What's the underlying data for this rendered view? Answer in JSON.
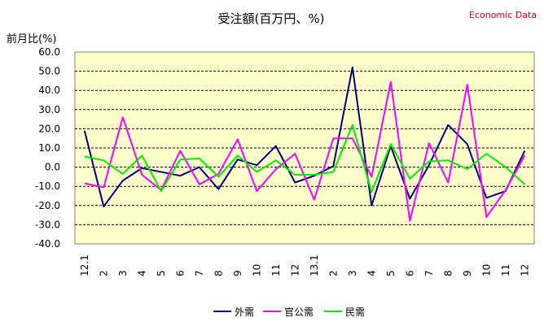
{
  "brand_text": "Economic Data",
  "chart_data": {
    "type": "line",
    "title": "受注額(百万円、%)",
    "ylabel": "前月比(%)",
    "xlabel": "",
    "ylim": [
      -40,
      60
    ],
    "ytick_step": 10,
    "yticks": [
      "60.0",
      "50.0",
      "40.0",
      "30.0",
      "20.0",
      "10.0",
      "0.0",
      "-10.0",
      "-20.0",
      "-30.0",
      "-40.0"
    ],
    "grid": true,
    "legend_position": "bottom",
    "categories": [
      "12.1",
      "2",
      "3",
      "4",
      "5",
      "6",
      "7",
      "8",
      "9",
      "10",
      "11",
      "12",
      "13.1",
      "2",
      "3",
      "4",
      "5",
      "6",
      "7",
      "8",
      "9",
      "10",
      "11",
      "12"
    ],
    "series": [
      {
        "name": "外需",
        "color": "#000080",
        "values": [
          19,
          -20.5,
          -7,
          -0.5,
          -2.5,
          -4.5,
          0,
          -11.5,
          4,
          1,
          11,
          -8,
          -4.5,
          0.5,
          52,
          -20,
          11,
          -16.5,
          1,
          22,
          12,
          -16,
          -12.5,
          8.5
        ]
      },
      {
        "name": "官公需",
        "color": "#ff00ff",
        "values": [
          -8.5,
          -10.5,
          26,
          -4,
          -12,
          8.5,
          -9,
          -3.5,
          14.5,
          -12.5,
          -1,
          7,
          -17,
          15,
          15,
          -5,
          44.5,
          -28,
          12.5,
          -8,
          43,
          -26,
          -12,
          6
        ]
      },
      {
        "name": "民需",
        "color": "#00ee00",
        "values": [
          5.5,
          3.5,
          -3.5,
          6,
          -12.5,
          4,
          4.5,
          -5,
          6,
          -2.5,
          3.5,
          -4,
          -4,
          -2.5,
          22,
          -13,
          12,
          -6,
          3,
          3.5,
          -1,
          7,
          0,
          -9
        ]
      }
    ]
  }
}
